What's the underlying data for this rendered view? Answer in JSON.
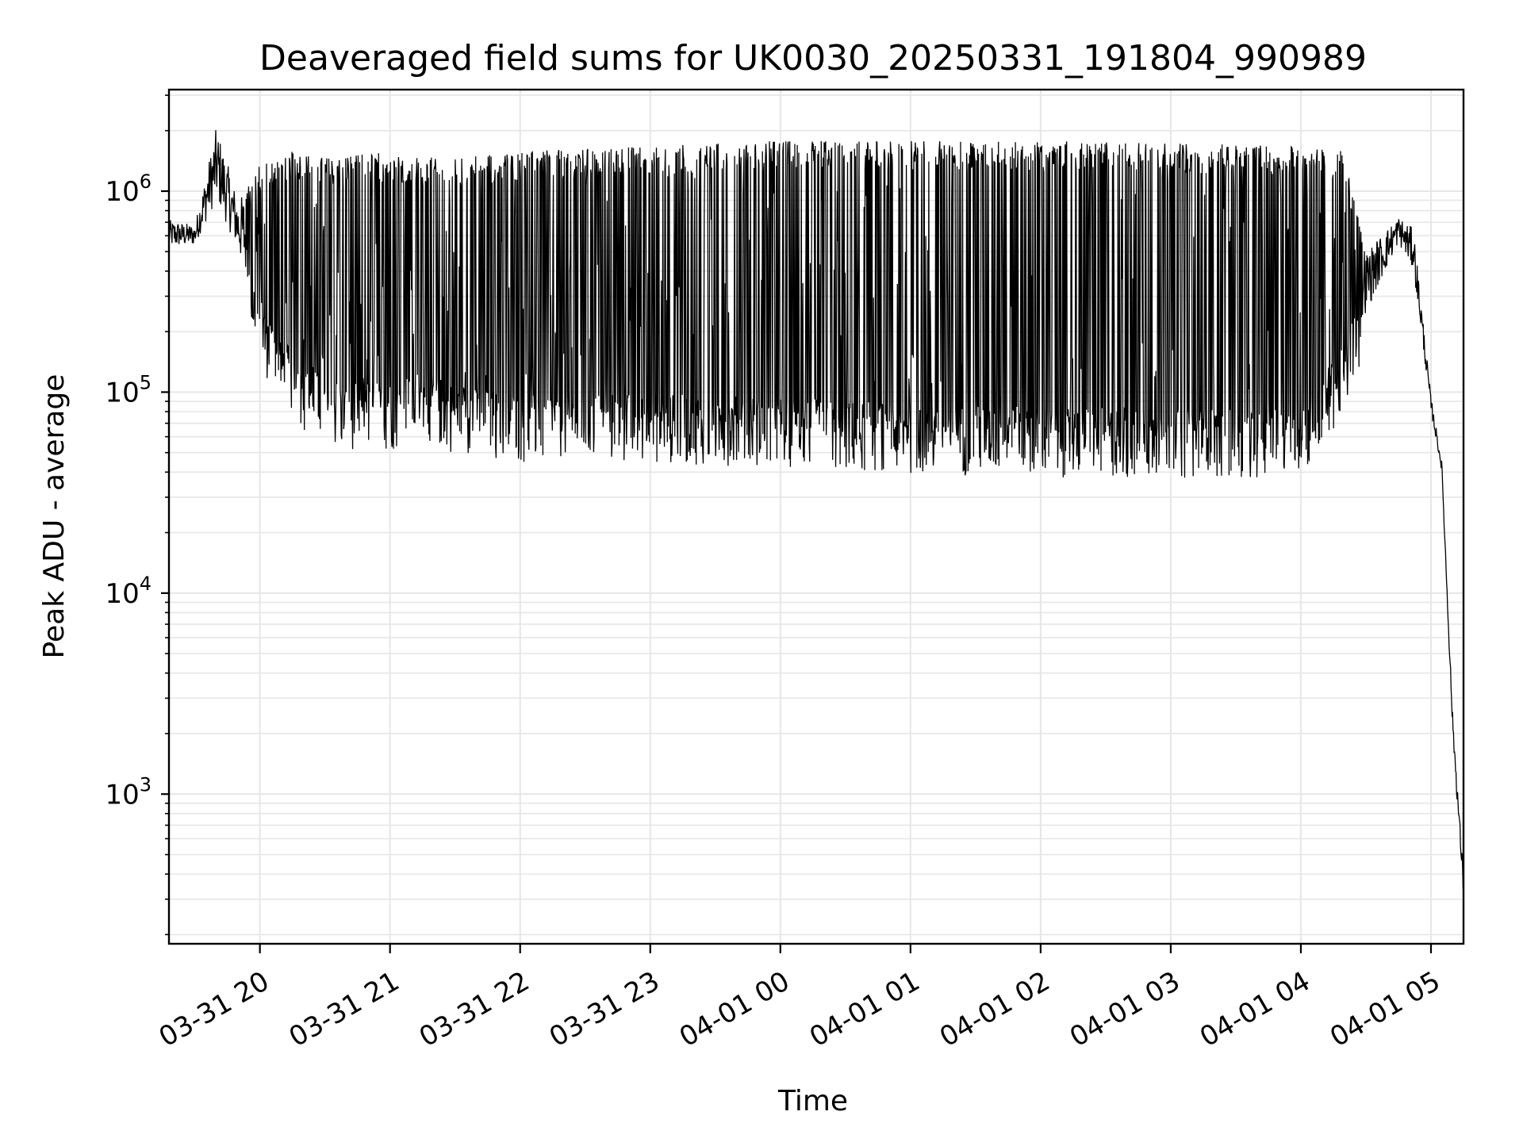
{
  "chart_data": {
    "type": "line",
    "title": "Deaveraged field sums for UK0030_20250331_191804_990989",
    "xlabel": "Time",
    "ylabel": "Peak ADU - average",
    "yscale": "log",
    "ylim": [
      180,
      3200000
    ],
    "xlim": [
      "2025-03-31 19:18:04",
      "2025-04-01 05:15:00"
    ],
    "x_ticks": [
      "03-31 20",
      "03-31 21",
      "03-31 22",
      "03-31 23",
      "04-01 00",
      "04-01 01",
      "04-01 02",
      "04-01 03",
      "04-01 04",
      "04-01 05"
    ],
    "y_ticks": [
      {
        "base": "10",
        "exp": "3",
        "value": 1000
      },
      {
        "base": "10",
        "exp": "4",
        "value": 10000
      },
      {
        "base": "10",
        "exp": "5",
        "value": 100000
      },
      {
        "base": "10",
        "exp": "6",
        "value": 1000000
      }
    ],
    "grid": true,
    "line_color": "#000000",
    "envelope": [
      {
        "x": "2025-03-31 19:18:04",
        "base": 520000,
        "peak": 720000
      },
      {
        "x": "2025-03-31 19:30:00",
        "base": 540000,
        "peak": 680000
      },
      {
        "x": "2025-03-31 19:40:00",
        "base": 900000,
        "peak": 2100000
      },
      {
        "x": "2025-03-31 19:50:00",
        "base": 500000,
        "peak": 900000
      },
      {
        "x": "2025-03-31 20:00:00",
        "base": 200000,
        "peak": 1300000
      },
      {
        "x": "2025-03-31 20:15:00",
        "base": 110000,
        "peak": 1500000
      },
      {
        "x": "2025-03-31 20:30:00",
        "base": 80000,
        "peak": 1400000
      },
      {
        "x": "2025-03-31 21:00:00",
        "base": 78000,
        "peak": 1500000
      },
      {
        "x": "2025-03-31 21:15:00",
        "base": 90000,
        "peak": 1400000
      },
      {
        "x": "2025-03-31 21:30:00",
        "base": 75000,
        "peak": 1400000
      },
      {
        "x": "2025-03-31 22:00:00",
        "base": 68000,
        "peak": 1500000
      },
      {
        "x": "2025-03-31 23:00:00",
        "base": 68000,
        "peak": 1600000
      },
      {
        "x": "2025-04-01 00:00:00",
        "base": 65000,
        "peak": 1700000
      },
      {
        "x": "2025-04-01 01:00:00",
        "base": 60000,
        "peak": 1700000
      },
      {
        "x": "2025-04-01 02:00:00",
        "base": 58000,
        "peak": 1700000
      },
      {
        "x": "2025-04-01 03:00:00",
        "base": 57000,
        "peak": 1650000
      },
      {
        "x": "2025-04-01 04:00:00",
        "base": 58000,
        "peak": 1600000
      },
      {
        "x": "2025-04-01 04:20:00",
        "base": 120000,
        "peak": 1500000
      },
      {
        "x": "2025-04-01 04:30:00",
        "base": 250000,
        "peak": 500000
      },
      {
        "x": "2025-04-01 04:45:00",
        "base": 550000,
        "peak": 750000
      },
      {
        "x": "2025-04-01 04:52:00",
        "base": 400000,
        "peak": 650000
      },
      {
        "x": "2025-04-01 05:00:00",
        "base": 80000,
        "peak": 95000
      },
      {
        "x": "2025-04-01 05:05:00",
        "base": 40000,
        "peak": 45000
      },
      {
        "x": "2025-04-01 05:10:00",
        "base": 2000,
        "peak": 2500
      },
      {
        "x": "2025-04-01 05:15:00",
        "base": 300,
        "peak": 400
      }
    ]
  }
}
